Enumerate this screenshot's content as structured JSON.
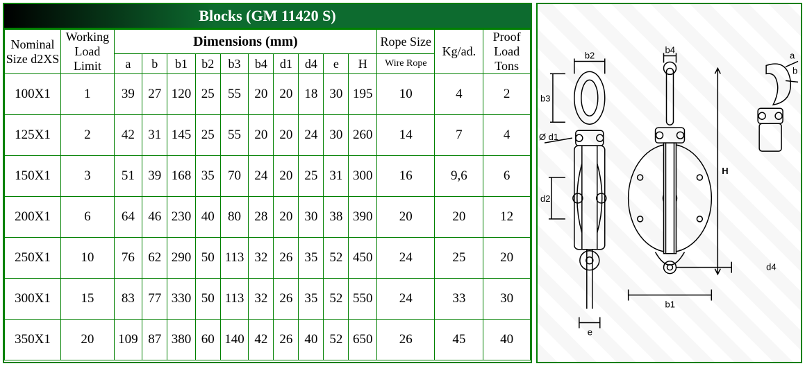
{
  "title": "Blocks (GM 11420 S)",
  "headers": {
    "nominal": "Nominal Size d2XS",
    "wll": "Working Load Limit",
    "dimensions": "Dimensions  (mm)",
    "rope_size": "Rope Size",
    "kg": "Kg/ad.",
    "proof": "Proof Load Tons",
    "sub": {
      "a": "a",
      "b": "b",
      "b1": "b1",
      "b2": "b2",
      "b3": "b3",
      "b4": "b4",
      "d1": "d1",
      "d4": "d4",
      "e": "e",
      "H": "H",
      "wire": "Wire Rope"
    }
  },
  "rows": [
    {
      "nom": "100X1",
      "wll": "1",
      "a": "39",
      "b": "27",
      "b1": "120",
      "b2": "25",
      "b3": "55",
      "b4": "20",
      "d1": "20",
      "d4": "18",
      "e": "30",
      "H": "195",
      "rope": "10",
      "kg": "4",
      "pl": "2"
    },
    {
      "nom": "125X1",
      "wll": "2",
      "a": "42",
      "b": "31",
      "b1": "145",
      "b2": "25",
      "b3": "55",
      "b4": "20",
      "d1": "20",
      "d4": "24",
      "e": "30",
      "H": "260",
      "rope": "14",
      "kg": "7",
      "pl": "4"
    },
    {
      "nom": "150X1",
      "wll": "3",
      "a": "51",
      "b": "39",
      "b1": "168",
      "b2": "35",
      "b3": "70",
      "b4": "24",
      "d1": "20",
      "d4": "25",
      "e": "31",
      "H": "300",
      "rope": "16",
      "kg": "9,6",
      "pl": "6"
    },
    {
      "nom": "200X1",
      "wll": "6",
      "a": "64",
      "b": "46",
      "b1": "230",
      "b2": "40",
      "b3": "80",
      "b4": "28",
      "d1": "20",
      "d4": "30",
      "e": "38",
      "H": "390",
      "rope": "20",
      "kg": "20",
      "pl": "12"
    },
    {
      "nom": "250X1",
      "wll": "10",
      "a": "76",
      "b": "62",
      "b1": "290",
      "b2": "50",
      "b3": "113",
      "b4": "32",
      "d1": "26",
      "d4": "35",
      "e": "52",
      "H": "450",
      "rope": "24",
      "kg": "25",
      "pl": "20"
    },
    {
      "nom": "300X1",
      "wll": "15",
      "a": "83",
      "b": "77",
      "b1": "330",
      "b2": "50",
      "b3": "113",
      "b4": "32",
      "d1": "26",
      "d4": "35",
      "e": "52",
      "H": "550",
      "rope": "24",
      "kg": "33",
      "pl": "30"
    },
    {
      "nom": "350X1",
      "wll": "20",
      "a": "109",
      "b": "87",
      "b1": "380",
      "b2": "60",
      "b3": "140",
      "b4": "42",
      "d1": "26",
      "d4": "40",
      "e": "52",
      "H": "650",
      "rope": "26",
      "kg": "45",
      "pl": "40"
    }
  ],
  "diagram_labels": {
    "b2": "b2",
    "b4": "b4",
    "a": "a",
    "b": "b",
    "b3": "b3",
    "d1": "Ø d1",
    "d2": "d2",
    "H": "H",
    "e": "e",
    "b1": "b1",
    "d4": "d4"
  },
  "colors": {
    "border": "#008000",
    "title_grad_start": "#000000",
    "title_grad_end": "#0d6b2f",
    "text": "#000000",
    "bg": "#ffffff"
  }
}
